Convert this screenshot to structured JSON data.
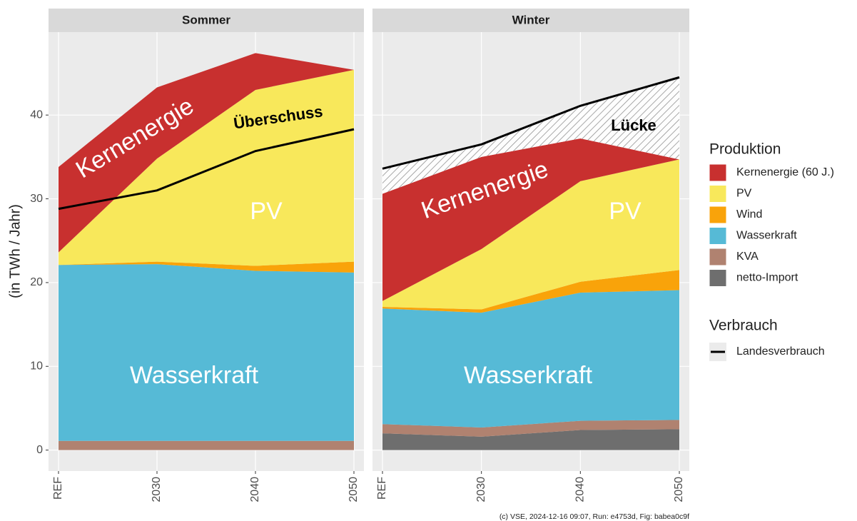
{
  "y_label": "(in TWh / Jahr)",
  "legend": {
    "production_title": "Produktion",
    "consumption_title": "Verbrauch"
  },
  "caption": "(c) VSE, 2024-12-16 09:07, Run: e4753d, Fig: babea0c9f",
  "chart_data": [
    {
      "type": "area",
      "title": "Sommer",
      "stacked": true,
      "shade_gap": false,
      "categories": [
        "REF",
        "2030",
        "2040",
        "2050"
      ],
      "ylim": [
        -2.5,
        49.9
      ],
      "yticks": [
        0,
        10,
        20,
        30,
        40
      ],
      "grid": true,
      "series": [
        {
          "name": "Kernenergie (60 J.)",
          "color": "#c8302f",
          "values": [
            10.2,
            8.5,
            4.4,
            0
          ]
        },
        {
          "name": "PV",
          "color": "#f8e85b",
          "values": [
            1.5,
            12.3,
            21,
            22.9
          ]
        },
        {
          "name": "Wind",
          "color": "#f9a30a",
          "values": [
            0,
            0.3,
            0.6,
            1.3
          ]
        },
        {
          "name": "Wasserkraft",
          "color": "#56bad6",
          "values": [
            21,
            21.1,
            20.3,
            20.1
          ]
        },
        {
          "name": "KVA",
          "color": "#b08270",
          "values": [
            1.1,
            1.1,
            1.1,
            1.1
          ]
        },
        {
          "name": "netto-Import",
          "color": "#6e6e6e",
          "values": [
            0,
            0,
            0,
            0
          ]
        }
      ],
      "line_series": [
        {
          "name": "Landesverbrauch",
          "color": "#000000",
          "values": [
            28.8,
            31.0,
            35.7,
            38.3
          ]
        }
      ],
      "annotations": [
        "Kernenergie",
        "Überschuss",
        "PV",
        "Wasserkraft"
      ]
    },
    {
      "type": "area",
      "title": "Winter",
      "stacked": true,
      "shade_gap": true,
      "categories": [
        "REF",
        "2030",
        "2040",
        "2050"
      ],
      "ylim": [
        -2.5,
        49.9
      ],
      "yticks": [
        0,
        10,
        20,
        30,
        40
      ],
      "grid": true,
      "series": [
        {
          "name": "Kernenergie (60 J.)",
          "color": "#c8302f",
          "values": [
            12.8,
            11,
            5.1,
            0
          ]
        },
        {
          "name": "PV",
          "color": "#f8e85b",
          "values": [
            0.7,
            7.2,
            12.0,
            13.2
          ]
        },
        {
          "name": "Wind",
          "color": "#f9a30a",
          "values": [
            0.2,
            0.4,
            1.3,
            2.4
          ]
        },
        {
          "name": "Wasserkraft",
          "color": "#56bad6",
          "values": [
            13.8,
            13.7,
            15.3,
            15.5
          ]
        },
        {
          "name": "KVA",
          "color": "#b08270",
          "values": [
            1.1,
            1.1,
            1.1,
            1.1
          ]
        },
        {
          "name": "netto-Import",
          "color": "#6e6e6e",
          "values": [
            2.0,
            1.6,
            2.4,
            2.5
          ]
        }
      ],
      "line_series": [
        {
          "name": "Landesverbrauch",
          "color": "#000000",
          "values": [
            33.6,
            36.5,
            41.1,
            44.5
          ]
        }
      ],
      "annotations": [
        "Kernenergie",
        "Lücke",
        "PV",
        "Wasserkraft"
      ]
    }
  ]
}
